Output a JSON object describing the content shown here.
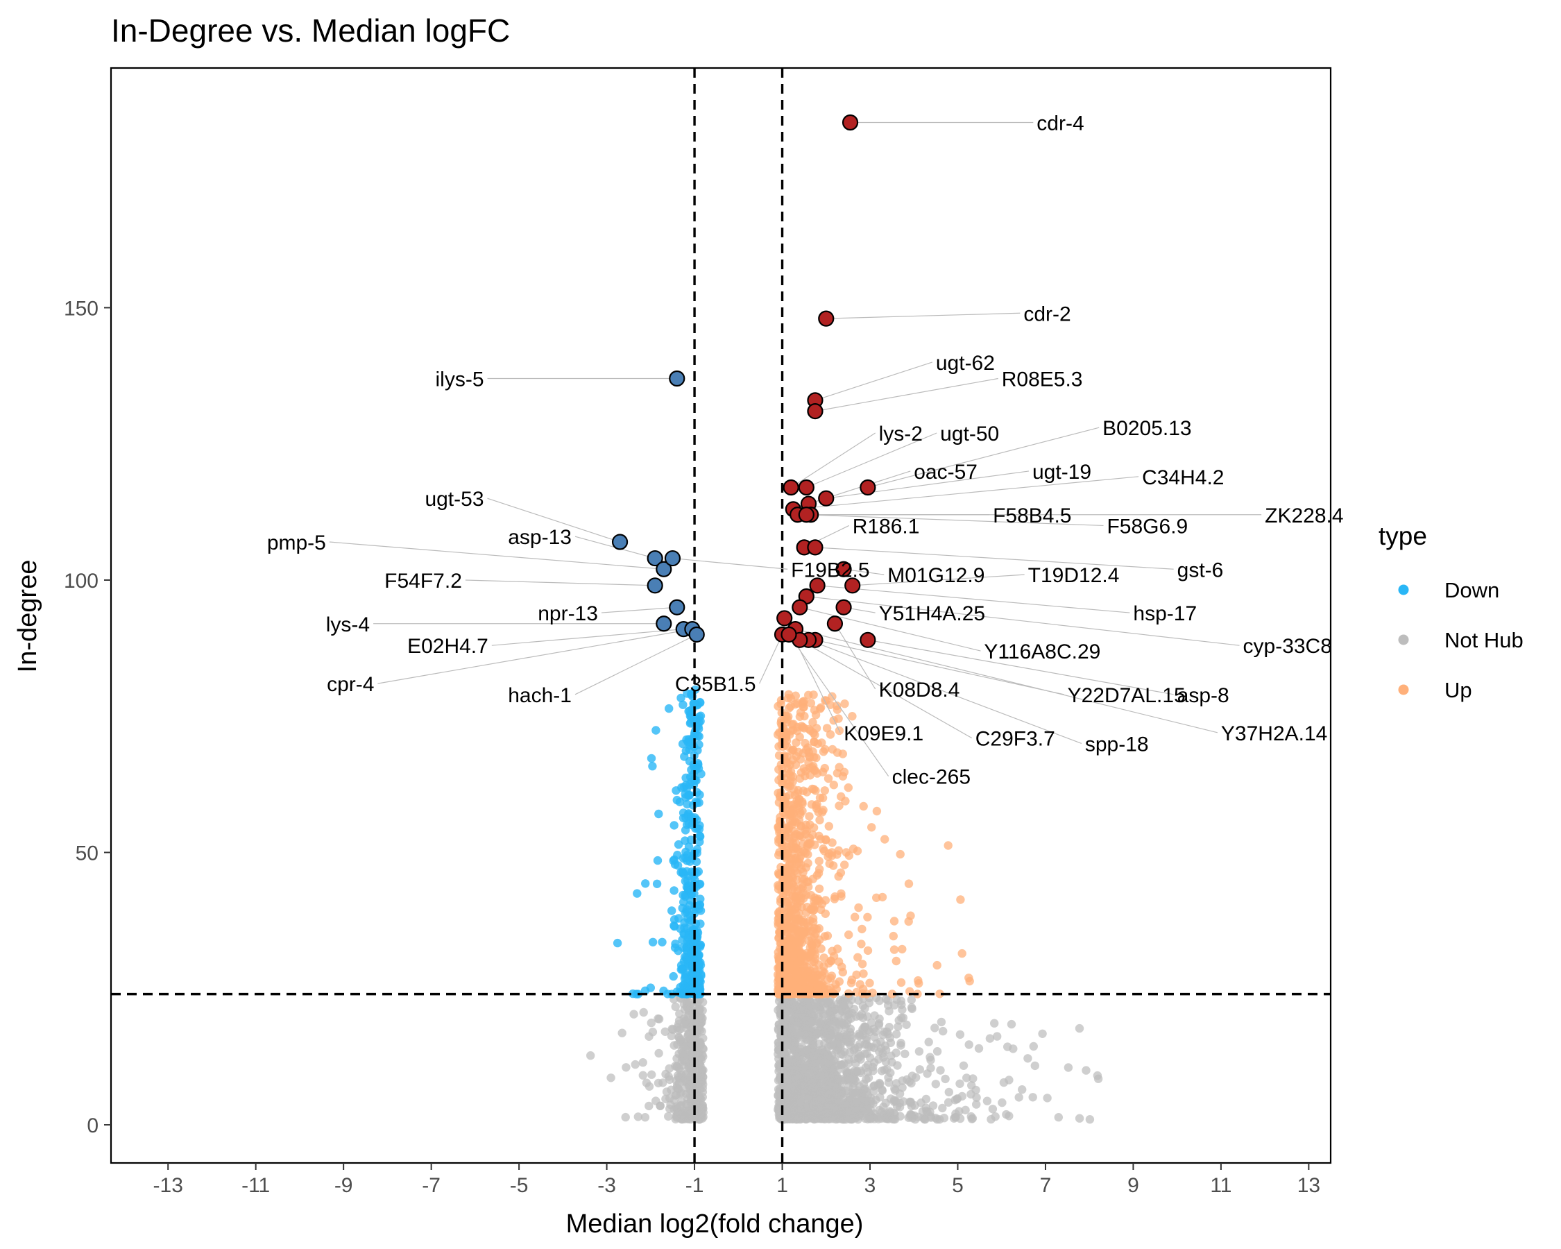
{
  "chart_data": {
    "type": "scatter",
    "title": "In-Degree vs. Median logFC",
    "xlabel": "Median log2(fold change)",
    "ylabel": "In-degree",
    "xlim": [
      -14.3,
      13.5
    ],
    "ylim": [
      -7,
      194
    ],
    "x_ticks": [
      -13,
      -11,
      -9,
      -7,
      -5,
      -3,
      -1,
      1,
      3,
      5,
      7,
      9,
      11,
      13
    ],
    "y_ticks": [
      0,
      50,
      100,
      150
    ],
    "thresholds": {
      "x": [
        -1,
        1
      ],
      "y": 24
    },
    "grid": false,
    "legend": {
      "title": "type",
      "position": "right",
      "entries": [
        {
          "label": "Down",
          "color": "#29B6F6"
        },
        {
          "label": "Not Hub",
          "color": "#BDBDBD"
        },
        {
          "label": "Up",
          "color": "#FFB07A"
        }
      ]
    },
    "colors": {
      "Down": "#29B6F6",
      "Not Hub": "#BDBDBD",
      "Up": "#FFB07A",
      "hub_down": "#4A7FB5",
      "hub_up": "#B22222"
    },
    "hub_genes": [
      {
        "label": "cdr-4",
        "x": 2.55,
        "y": 184,
        "type": "Up",
        "lx": 6.8,
        "ly": 184
      },
      {
        "label": "cdr-2",
        "x": 2.0,
        "y": 148,
        "type": "Up",
        "lx": 6.5,
        "ly": 149
      },
      {
        "label": "ilys-5",
        "x": -1.4,
        "y": 137,
        "type": "Down",
        "lx": -5.8,
        "ly": 137
      },
      {
        "label": "ugt-62",
        "x": 1.75,
        "y": 133,
        "type": "Up",
        "lx": 4.5,
        "ly": 140
      },
      {
        "label": "R08E5.3",
        "x": 1.75,
        "y": 131,
        "type": "Up",
        "lx": 6.0,
        "ly": 137
      },
      {
        "label": "lys-2",
        "x": 1.2,
        "y": 117,
        "type": "Up",
        "lx": 3.2,
        "ly": 127
      },
      {
        "label": "ugt-50",
        "x": 1.55,
        "y": 117,
        "type": "Up",
        "lx": 4.6,
        "ly": 127
      },
      {
        "label": "B0205.13",
        "x": 2.95,
        "y": 117,
        "type": "Up",
        "lx": 8.3,
        "ly": 128
      },
      {
        "label": "oac-57",
        "x": 1.6,
        "y": 114,
        "type": "Up",
        "lx": 4.0,
        "ly": 120
      },
      {
        "label": "ugt-19",
        "x": 2.0,
        "y": 115,
        "type": "Up",
        "lx": 6.7,
        "ly": 120
      },
      {
        "label": "C34H4.2",
        "x": 1.25,
        "y": 113,
        "type": "Up",
        "lx": 9.2,
        "ly": 119
      },
      {
        "label": "F58B4.5",
        "x": 1.35,
        "y": 112,
        "type": "Up",
        "lx": 5.8,
        "ly": 112
      },
      {
        "label": "ZK228.4",
        "x": 1.65,
        "y": 112,
        "type": "Up",
        "lx": 12.0,
        "ly": 112
      },
      {
        "label": "F58G6.9",
        "x": 1.55,
        "y": 112,
        "type": "Up",
        "lx": 8.4,
        "ly": 110
      },
      {
        "label": "R186.1",
        "x": 1.5,
        "y": 106,
        "type": "Up",
        "lx": 2.6,
        "ly": 110
      },
      {
        "label": "ugt-53",
        "x": -2.7,
        "y": 107,
        "type": "Down",
        "lx": -5.8,
        "ly": 115
      },
      {
        "label": "asp-13",
        "x": -1.9,
        "y": 104,
        "type": "Down",
        "lx": -3.8,
        "ly": 108
      },
      {
        "label": "pmp-5",
        "x": -1.7,
        "y": 102,
        "type": "Down",
        "lx": -9.4,
        "ly": 107
      },
      {
        "label": "F19B2.5",
        "x": -1.5,
        "y": 104,
        "type": "Down",
        "lx": 1.2,
        "ly": 102
      },
      {
        "label": "F54F7.2",
        "x": -1.9,
        "y": 99,
        "type": "Down",
        "lx": -6.3,
        "ly": 100
      },
      {
        "label": "gst-6",
        "x": 1.75,
        "y": 106,
        "type": "Up",
        "lx": 10.0,
        "ly": 102
      },
      {
        "label": "M01G12.9",
        "x": 2.4,
        "y": 102,
        "type": "Up",
        "lx": 3.4,
        "ly": 101
      },
      {
        "label": "T19D12.4",
        "x": 2.6,
        "y": 99,
        "type": "Up",
        "lx": 6.6,
        "ly": 101
      },
      {
        "label": "npr-13",
        "x": -1.4,
        "y": 95,
        "type": "Down",
        "lx": -3.2,
        "ly": 94
      },
      {
        "label": "lys-4",
        "x": -1.7,
        "y": 92,
        "type": "Down",
        "lx": -8.4,
        "ly": 92
      },
      {
        "label": "E02H4.7",
        "x": -1.25,
        "y": 91,
        "type": "Down",
        "lx": -5.7,
        "ly": 88
      },
      {
        "label": "Y51H4A.25",
        "x": 2.4,
        "y": 95,
        "type": "Up",
        "lx": 3.2,
        "ly": 94
      },
      {
        "label": "hsp-17",
        "x": 1.8,
        "y": 99,
        "type": "Up",
        "lx": 9.0,
        "ly": 94
      },
      {
        "label": "cyp-33C8",
        "x": 1.55,
        "y": 97,
        "type": "Up",
        "lx": 11.5,
        "ly": 88
      },
      {
        "label": "Y116A8C.29",
        "x": 1.4,
        "y": 95,
        "type": "Up",
        "lx": 5.6,
        "ly": 87
      },
      {
        "label": "cpr-4",
        "x": -1.05,
        "y": 91,
        "type": "Down",
        "lx": -8.3,
        "ly": 81
      },
      {
        "label": "hach-1",
        "x": -0.95,
        "y": 90,
        "type": "Down",
        "lx": -3.8,
        "ly": 79
      },
      {
        "label": "C35B1.5",
        "x": 1.0,
        "y": 90,
        "type": "Up",
        "lx": 0.4,
        "ly": 81
      },
      {
        "label": "K08D8.4",
        "x": 2.2,
        "y": 92,
        "type": "Up",
        "lx": 3.2,
        "ly": 80
      },
      {
        "label": "Y22D7AL.15",
        "x": 1.75,
        "y": 89,
        "type": "Up",
        "lx": 7.5,
        "ly": 79
      },
      {
        "label": "asp-8",
        "x": 2.95,
        "y": 89,
        "type": "Up",
        "lx": 10.0,
        "ly": 79
      },
      {
        "label": "Y37H2A.14",
        "x": 1.3,
        "y": 91,
        "type": "Up",
        "lx": 11.0,
        "ly": 72
      },
      {
        "label": "spp-18",
        "x": 1.6,
        "y": 89,
        "type": "Up",
        "lx": 7.9,
        "ly": 70
      },
      {
        "label": "C29F3.7",
        "x": 1.4,
        "y": 89,
        "type": "Up",
        "lx": 5.4,
        "ly": 71
      },
      {
        "label": "K09E9.1",
        "x": 1.05,
        "y": 93,
        "type": "Up",
        "lx": 2.4,
        "ly": 72
      },
      {
        "label": "clec-265",
        "x": 1.15,
        "y": 90,
        "type": "Up",
        "lx": 3.5,
        "ly": 64
      }
    ],
    "background_points_note": ""
  }
}
